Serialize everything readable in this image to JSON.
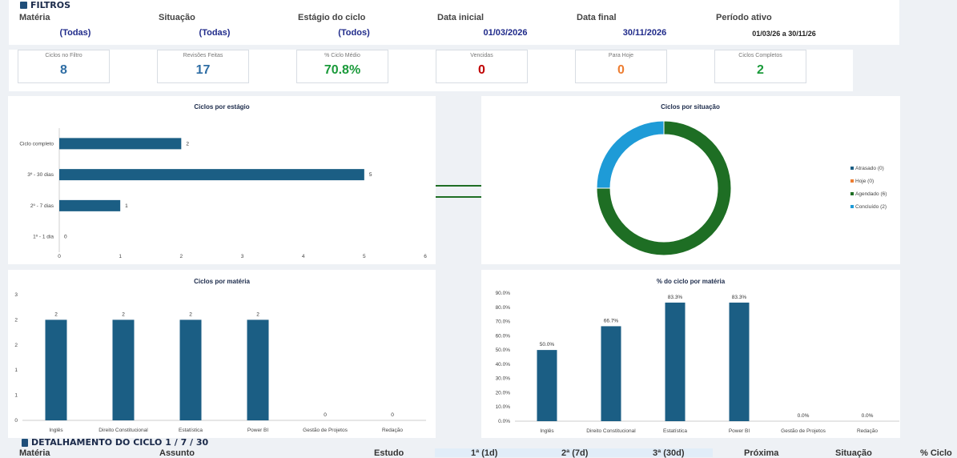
{
  "filters": {
    "title": "FILTROS",
    "fields": [
      {
        "label": "Matéria",
        "value": "(Todas)"
      },
      {
        "label": "Situação",
        "value": "(Todas)"
      },
      {
        "label": "Estágio do ciclo",
        "value": "(Todos)"
      },
      {
        "label": "Data inicial",
        "value": "01/03/2026"
      },
      {
        "label": "Data final",
        "value": "30/11/2026"
      },
      {
        "label": "Período ativo",
        "value": "01/03/26 a 30/11/26"
      }
    ]
  },
  "kpis": [
    {
      "label": "Ciclos no Filtro",
      "value": "8",
      "color": "#2e6da4"
    },
    {
      "label": "Revisões Feitas",
      "value": "17",
      "color": "#2e6da4"
    },
    {
      "label": "% Ciclo Médio",
      "value": "70.8%",
      "color": "#1a9a3a"
    },
    {
      "label": "Vencidas",
      "value": "0",
      "color": "#c00000"
    },
    {
      "label": "Para Hoje",
      "value": "0",
      "color": "#ed7d31"
    },
    {
      "label": "Ciclos Completos",
      "value": "2",
      "color": "#1a9a3a"
    }
  ],
  "chart_data": [
    {
      "type": "bar",
      "orientation": "horizontal",
      "title": "Ciclos por estágio",
      "categories": [
        "Ciclo completo",
        "3º - 30 dias",
        "2º - 7 dias",
        "1º - 1 dia"
      ],
      "values": [
        2,
        5,
        1,
        0
      ],
      "xlim": [
        0,
        6
      ],
      "x_ticks": [
        "0",
        "1",
        "2",
        "3",
        "4",
        "5",
        "6"
      ],
      "color": "#1b5e84"
    },
    {
      "type": "pie",
      "title": "Ciclos por situação",
      "legend_position": "right",
      "series": [
        {
          "name": "Atrasado (0)",
          "value": 0,
          "color": "#1b5e84"
        },
        {
          "name": "Hoje (0)",
          "value": 0,
          "color": "#ed7d31"
        },
        {
          "name": "Agendado (6)",
          "value": 6,
          "color": "#1e6e24"
        },
        {
          "name": "Concluído (2)",
          "value": 2,
          "color": "#1e9bd7"
        }
      ]
    },
    {
      "type": "bar",
      "title": "Ciclos por matéria",
      "categories": [
        "Inglês",
        "Direito Constitucional",
        "Estatística",
        "Power BI",
        "Gestão de Projetos",
        "Redação"
      ],
      "values": [
        2,
        2,
        2,
        2,
        0,
        0
      ],
      "y_ticks": [
        "0",
        "1",
        "1",
        "2",
        "2",
        "3"
      ],
      "ylim": [
        0,
        2.5
      ],
      "color": "#1b5e84"
    },
    {
      "type": "bar",
      "title": "% do ciclo por matéria",
      "categories": [
        "Inglês",
        "Direito Constitucional",
        "Estatística",
        "Power BI",
        "Gestão de Projetos",
        "Redação"
      ],
      "values": [
        50.0,
        66.7,
        83.3,
        83.3,
        0.0,
        0.0
      ],
      "value_labels": [
        "50.0%",
        "66.7%",
        "83.3%",
        "83.3%",
        "0.0%",
        "0.0%"
      ],
      "y_ticks": [
        "0.0%",
        "10.0%",
        "20.0%",
        "30.0%",
        "40.0%",
        "50.0%",
        "60.0%",
        "70.0%",
        "80.0%",
        "90.0%"
      ],
      "ylim": [
        0,
        90
      ],
      "color": "#1b5e84"
    }
  ],
  "detail": {
    "title": "DETALHAMENTO DO CICLO 1 / 7 / 30",
    "columns": [
      "Matéria",
      "Assunto",
      "Estudo",
      "1ª (1d)",
      "2ª (7d)",
      "3ª (30d)",
      "Próxima",
      "Situação",
      "% Ciclo"
    ]
  }
}
